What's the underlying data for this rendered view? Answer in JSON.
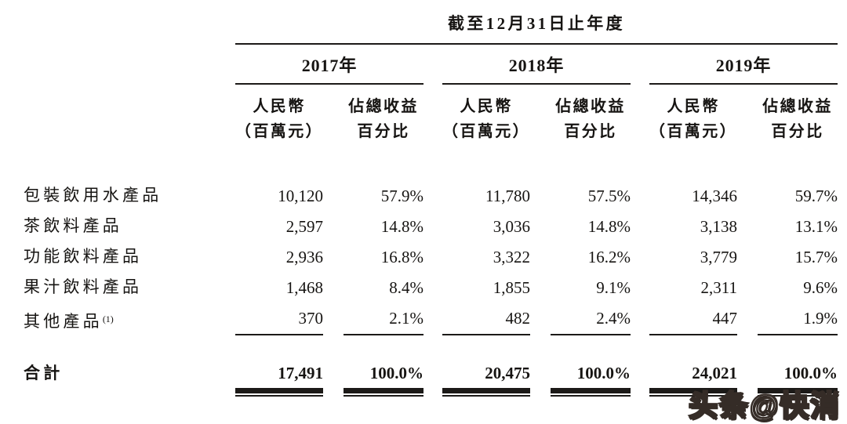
{
  "table": {
    "title": "截至12月31日止年度",
    "year_groups": [
      {
        "label": "2017年"
      },
      {
        "label": "2018年"
      },
      {
        "label": "2019年"
      }
    ],
    "col_headers": {
      "rmb_line1": "人民幣",
      "rmb_line2": "（百萬元）",
      "pct_line1": "佔總收益",
      "pct_line2": "百分比"
    },
    "rows": [
      {
        "label": "包裝飲用水產品",
        "footnote": "",
        "values": [
          "10,120",
          "57.9%",
          "11,780",
          "57.5%",
          "14,346",
          "59.7%"
        ]
      },
      {
        "label": "茶飲料產品",
        "footnote": "",
        "values": [
          "2,597",
          "14.8%",
          "3,036",
          "14.8%",
          "3,138",
          "13.1%"
        ]
      },
      {
        "label": "功能飲料產品",
        "footnote": "",
        "values": [
          "2,936",
          "16.8%",
          "3,322",
          "16.2%",
          "3,779",
          "15.7%"
        ]
      },
      {
        "label": "果汁飲料產品",
        "footnote": "",
        "values": [
          "1,468",
          "8.4%",
          "1,855",
          "9.1%",
          "2,311",
          "9.6%"
        ]
      },
      {
        "label": "其他產品",
        "footnote": "(1)",
        "values": [
          "370",
          "2.1%",
          "482",
          "2.4%",
          "447",
          "1.9%"
        ]
      }
    ],
    "total_row": {
      "label": "合計",
      "values": [
        "17,491",
        "100.0%",
        "20,475",
        "100.0%",
        "24,021",
        "100.0%"
      ]
    }
  },
  "watermark": {
    "text": "头条@快消",
    "outline_color": "#352c27",
    "fill_color": "#ffffff"
  }
}
